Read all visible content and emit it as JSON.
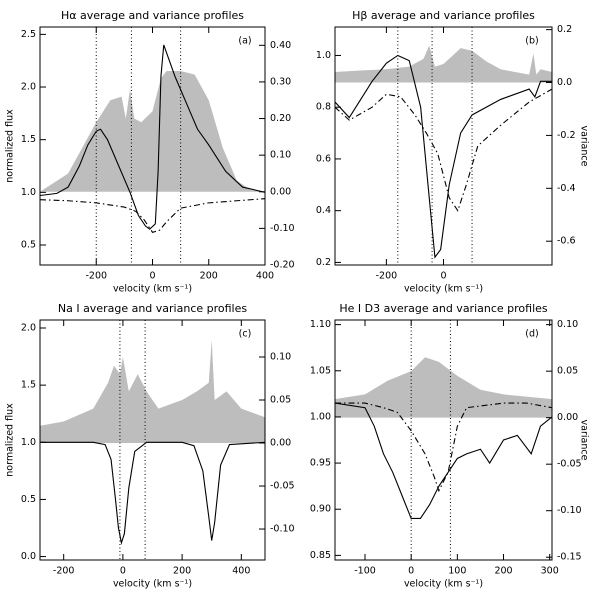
{
  "chart_data": [
    {
      "type": "line",
      "title": "Hα average and variance profiles",
      "label": "(a)",
      "xlabel": "velocity (km s⁻¹)",
      "ylabel": "normalized flux",
      "xlim": [
        -400,
        400
      ],
      "xticks": [
        -200,
        0,
        200,
        400
      ],
      "ylim": [
        0.31,
        2.57
      ],
      "yticks": [
        0.5,
        {
          "value": 1.0,
          "label": "1.0"
        },
        1.5,
        {
          "value": 2.0,
          "label": "2.0"
        },
        2.5
      ],
      "y2lim": [
        -0.2,
        0.45
      ],
      "y2ticks": [
        {
          "value": -0.2,
          "label": "-0.20"
        },
        {
          "value": -0.1,
          "label": "-0.10"
        },
        {
          "value": 0,
          "label": "0.00"
        },
        {
          "value": 0.1,
          "label": "0.10"
        },
        {
          "value": 0.2,
          "label": "0.20"
        },
        {
          "value": 0.3,
          "label": "0.30"
        },
        {
          "value": 0.4,
          "label": "0.40"
        }
      ],
      "vlines": [
        -200,
        -75,
        100
      ],
      "series": [
        {
          "style": "area",
          "axis": "y2",
          "color": "#bdbdbd",
          "x": [
            -400,
            -380,
            -300,
            -250,
            -200,
            -150,
            -110,
            -95,
            -80,
            -65,
            -40,
            0,
            30,
            50,
            100,
            150,
            200,
            250,
            300,
            350,
            400
          ],
          "values": [
            0,
            0.01,
            0.05,
            0.12,
            0.19,
            0.25,
            0.26,
            0.2,
            0.28,
            0.2,
            0.19,
            0.22,
            0.31,
            0.33,
            0.33,
            0.32,
            0.25,
            0.12,
            0.03,
            0.005,
            0
          ]
        },
        {
          "style": "dashdot",
          "color": "#000000",
          "x": [
            -400,
            -300,
            -200,
            -100,
            -60,
            -30,
            0,
            25,
            50,
            100,
            200,
            300,
            400
          ],
          "values": [
            0.93,
            0.92,
            0.9,
            0.86,
            0.82,
            0.74,
            0.62,
            0.64,
            0.72,
            0.85,
            0.9,
            0.92,
            0.94
          ]
        },
        {
          "style": "solid",
          "color": "#000000",
          "x": [
            -400,
            -340,
            -300,
            -260,
            -230,
            -200,
            -185,
            -160,
            -120,
            -80,
            -50,
            -25,
            -10,
            10,
            20,
            30,
            40,
            60,
            80,
            120,
            160,
            200,
            260,
            320,
            400
          ],
          "values": [
            0.97,
            0.99,
            1.05,
            1.25,
            1.45,
            1.58,
            1.6,
            1.5,
            1.25,
            1.0,
            0.78,
            0.68,
            0.65,
            0.7,
            1.2,
            2.1,
            2.4,
            2.25,
            2.1,
            1.85,
            1.6,
            1.45,
            1.2,
            1.05,
            1.0
          ]
        }
      ]
    },
    {
      "type": "line",
      "title": "Hβ average and variance profiles",
      "label": "(b)",
      "xlabel": "velocity (km s⁻¹)",
      "y2label": "variance",
      "xlim": [
        -380,
        380
      ],
      "xticks": [
        -200,
        0
      ],
      "ylim": [
        0.19,
        1.11
      ],
      "yticks": [
        0.2,
        0.4,
        0.6,
        0.8,
        {
          "value": 1.0,
          "label": "1.0"
        }
      ],
      "y2lim": [
        -0.69,
        0.21
      ],
      "y2ticks": [
        -0.6,
        -0.4,
        -0.2,
        {
          "value": 0,
          "label": "0.0"
        },
        0.2
      ],
      "vlines": [
        -160,
        -40,
        100
      ],
      "series": [
        {
          "style": "area",
          "axis": "y2",
          "color": "#bdbdbd",
          "x": [
            -380,
            -300,
            -200,
            -120,
            -70,
            -50,
            -30,
            0,
            40,
            60,
            100,
            150,
            200,
            250,
            300,
            315,
            325,
            340,
            380
          ],
          "values": [
            0.04,
            0.045,
            0.05,
            0.06,
            0.09,
            0.14,
            0.06,
            0.07,
            0.11,
            0.13,
            0.12,
            0.08,
            0.05,
            0.04,
            0.03,
            0.11,
            0.03,
            0.05,
            0.04
          ]
        },
        {
          "style": "dashdot",
          "color": "#000000",
          "x": [
            -380,
            -330,
            -250,
            -200,
            -150,
            -100,
            -60,
            -20,
            20,
            50,
            80,
            120,
            200,
            300,
            380
          ],
          "values": [
            0.8,
            0.75,
            0.8,
            0.85,
            0.84,
            0.77,
            0.7,
            0.62,
            0.45,
            0.4,
            0.5,
            0.65,
            0.73,
            0.82,
            0.87
          ]
        },
        {
          "style": "solid",
          "color": "#000000",
          "x": [
            -380,
            -330,
            -250,
            -200,
            -160,
            -120,
            -80,
            -50,
            -30,
            -10,
            20,
            60,
            100,
            200,
            300,
            320,
            340,
            380
          ],
          "values": [
            0.82,
            0.76,
            0.9,
            0.97,
            1.0,
            0.98,
            0.8,
            0.45,
            0.22,
            0.25,
            0.5,
            0.7,
            0.77,
            0.83,
            0.87,
            0.84,
            0.9,
            0.9
          ]
        }
      ]
    },
    {
      "type": "line",
      "title": "Na I average and variance profiles",
      "label": "(c)",
      "xlabel": "velocity (km s⁻¹)",
      "ylabel": "normalized flux",
      "xlim": [
        -280,
        480
      ],
      "xticks": [
        -200,
        0,
        200,
        400
      ],
      "ylim": [
        -0.03,
        2.07
      ],
      "yticks": [
        {
          "value": 0,
          "label": "0.0"
        },
        0.5,
        {
          "value": 1.0,
          "label": "1.0"
        },
        1.5,
        {
          "value": 2.0,
          "label": "2.0"
        }
      ],
      "y2lim": [
        -0.136,
        0.143
      ],
      "y2ticks": [
        {
          "value": -0.1,
          "label": "-0.10"
        },
        {
          "value": -0.05,
          "label": "-0.05"
        },
        {
          "value": 0,
          "label": "0.00"
        },
        {
          "value": 0.05,
          "label": "0.05"
        },
        {
          "value": 0.1,
          "label": "0.10"
        }
      ],
      "vlines": [
        -10,
        75
      ],
      "series": [
        {
          "style": "area",
          "axis": "y2",
          "color": "#bdbdbd",
          "x": [
            -280,
            -200,
            -100,
            -50,
            -30,
            -10,
            0,
            20,
            50,
            80,
            120,
            200,
            250,
            290,
            300,
            310,
            350,
            400,
            480
          ],
          "values": [
            0.02,
            0.025,
            0.04,
            0.07,
            0.09,
            0.08,
            0.1,
            0.06,
            0.08,
            0.06,
            0.04,
            0.05,
            0.06,
            0.07,
            0.12,
            0.05,
            0.06,
            0.04,
            0.03
          ]
        },
        {
          "style": "solid",
          "color": "#000000",
          "x": [
            -280,
            -100,
            -60,
            -40,
            -25,
            -15,
            -5,
            5,
            20,
            40,
            80,
            200,
            240,
            270,
            290,
            300,
            310,
            330,
            360,
            480
          ],
          "values": [
            1.0,
            1.0,
            0.98,
            0.85,
            0.5,
            0.25,
            0.12,
            0.2,
            0.6,
            0.92,
            1.0,
            1.0,
            0.97,
            0.75,
            0.35,
            0.14,
            0.3,
            0.8,
            0.98,
            1.0
          ]
        }
      ]
    },
    {
      "type": "line",
      "title": "He I D3 average and variance profiles",
      "label": "(d)",
      "xlabel": "velocity (km s⁻¹)",
      "y2label": "variance",
      "xlim": [
        -165,
        305
      ],
      "xticks": [
        -100,
        0,
        100,
        200,
        300
      ],
      "ylim": [
        0.845,
        1.105
      ],
      "yticks": [
        0.85,
        {
          "value": 0.9,
          "label": "0.90"
        },
        0.95,
        {
          "value": 1.0,
          "label": "1.00"
        },
        1.05,
        {
          "value": 1.1,
          "label": "1.10"
        }
      ],
      "y2lim": [
        -0.153,
        0.105
      ],
      "y2ticks": [
        {
          "value": -0.15,
          "label": "-0.15"
        },
        {
          "value": -0.1,
          "label": "-0.10"
        },
        {
          "value": -0.05,
          "label": "-0.05"
        },
        {
          "value": 0,
          "label": "0.00"
        },
        {
          "value": 0.05,
          "label": "0.05"
        },
        {
          "value": 0.1,
          "label": "0.10"
        }
      ],
      "vlines": [
        0,
        85
      ],
      "series": [
        {
          "style": "area",
          "axis": "y2",
          "color": "#bdbdbd",
          "x": [
            -165,
            -100,
            -50,
            0,
            30,
            60,
            100,
            150,
            200,
            305
          ],
          "values": [
            0.02,
            0.025,
            0.04,
            0.05,
            0.065,
            0.06,
            0.045,
            0.03,
            0.025,
            0.02
          ]
        },
        {
          "style": "dashdot",
          "color": "#000000",
          "x": [
            -165,
            -100,
            -60,
            -30,
            0,
            30,
            50,
            60,
            80,
            100,
            120,
            200,
            250,
            305
          ],
          "values": [
            1.015,
            1.015,
            1.01,
            1.005,
            0.985,
            0.96,
            0.935,
            0.92,
            0.94,
            0.99,
            1.01,
            1.015,
            1.015,
            1.01
          ]
        },
        {
          "style": "solid",
          "color": "#000000",
          "x": [
            -165,
            -100,
            -80,
            -60,
            -40,
            -20,
            0,
            20,
            40,
            60,
            80,
            100,
            120,
            150,
            170,
            200,
            230,
            260,
            280,
            305
          ],
          "values": [
            1.015,
            1.01,
            0.99,
            0.96,
            0.94,
            0.915,
            0.89,
            0.89,
            0.905,
            0.925,
            0.94,
            0.955,
            0.96,
            0.965,
            0.95,
            0.975,
            0.98,
            0.96,
            0.99,
            1.0
          ]
        }
      ]
    }
  ]
}
